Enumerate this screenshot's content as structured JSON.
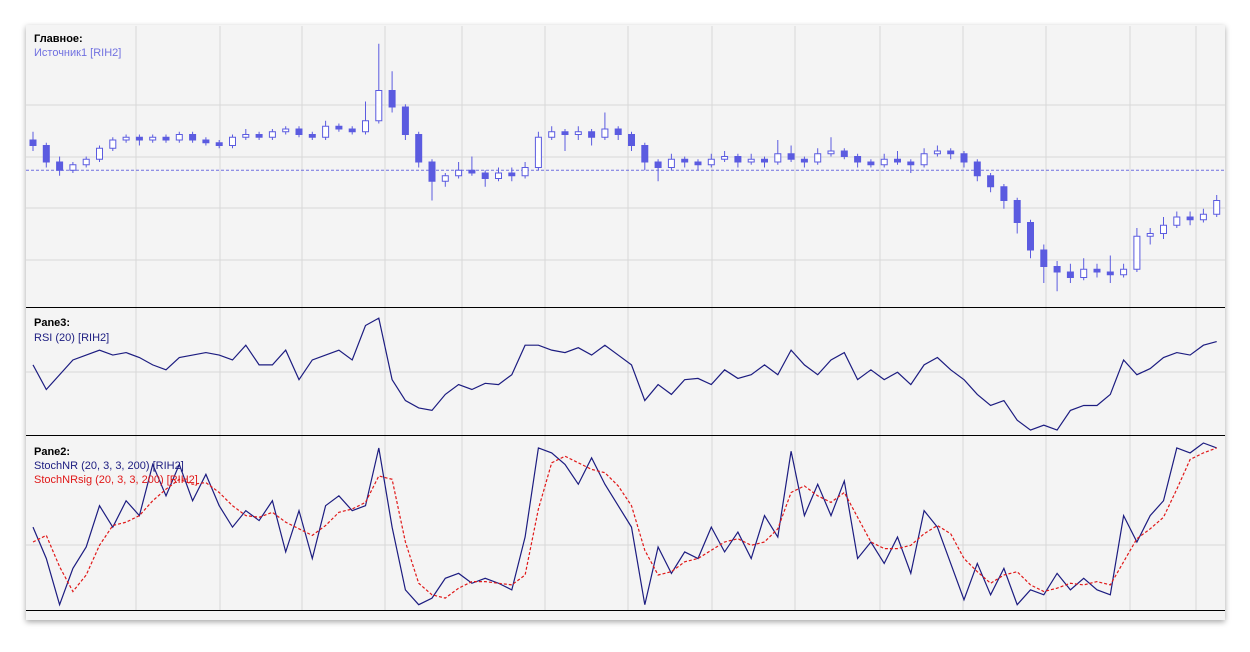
{
  "chart_data": [
    {
      "type": "candlestick",
      "title": "Главное:",
      "subtitle": "Источник1 [RIH2]",
      "color": "#5b5be0",
      "ylim": [
        0,
        100
      ],
      "reference_line": 49,
      "ohlc": [
        [
          60,
          63,
          56,
          58
        ],
        [
          58,
          59,
          50,
          52
        ],
        [
          52,
          54,
          47,
          49
        ],
        [
          49,
          52,
          48,
          51
        ],
        [
          51,
          54,
          50,
          53
        ],
        [
          53,
          58,
          52,
          57
        ],
        [
          57,
          61,
          56,
          60
        ],
        [
          60,
          62,
          59,
          61
        ],
        [
          61,
          62,
          58,
          60
        ],
        [
          60,
          62,
          59,
          61
        ],
        [
          61,
          62,
          59,
          60
        ],
        [
          60,
          63,
          59,
          62
        ],
        [
          62,
          63,
          59,
          60
        ],
        [
          60,
          61,
          58,
          59
        ],
        [
          59,
          60,
          57,
          58
        ],
        [
          58,
          62,
          57,
          61
        ],
        [
          61,
          64,
          60,
          62
        ],
        [
          62,
          63,
          60,
          61
        ],
        [
          61,
          64,
          60,
          63
        ],
        [
          63,
          65,
          62,
          64
        ],
        [
          64,
          65,
          61,
          62
        ],
        [
          62,
          63,
          60,
          61
        ],
        [
          61,
          67,
          60,
          65
        ],
        [
          65,
          66,
          63,
          64
        ],
        [
          64,
          65,
          62,
          63
        ],
        [
          63,
          74,
          62,
          67
        ],
        [
          67,
          95,
          66,
          78
        ],
        [
          78,
          85,
          70,
          72
        ],
        [
          72,
          73,
          60,
          62
        ],
        [
          62,
          63,
          50,
          52
        ],
        [
          52,
          53,
          38,
          45
        ],
        [
          45,
          48,
          43,
          47
        ],
        [
          47,
          52,
          46,
          49
        ],
        [
          49,
          54,
          47,
          48
        ],
        [
          48,
          49,
          43,
          46
        ],
        [
          46,
          50,
          45,
          48
        ],
        [
          48,
          50,
          45,
          47
        ],
        [
          47,
          52,
          46,
          50
        ],
        [
          50,
          63,
          49,
          61
        ],
        [
          61,
          65,
          60,
          63
        ],
        [
          63,
          64,
          56,
          62
        ],
        [
          62,
          65,
          60,
          63
        ],
        [
          63,
          64,
          58,
          61
        ],
        [
          61,
          70,
          60,
          64
        ],
        [
          64,
          65,
          60,
          62
        ],
        [
          62,
          63,
          56,
          58
        ],
        [
          58,
          59,
          49,
          52
        ],
        [
          52,
          53,
          45,
          50
        ],
        [
          50,
          55,
          49,
          53
        ],
        [
          53,
          54,
          50,
          52
        ],
        [
          52,
          53,
          49,
          51
        ],
        [
          51,
          55,
          50,
          53
        ],
        [
          53,
          56,
          52,
          54
        ],
        [
          54,
          55,
          50,
          52
        ],
        [
          52,
          55,
          51,
          53
        ],
        [
          53,
          54,
          50,
          52
        ],
        [
          52,
          60,
          51,
          55
        ],
        [
          55,
          58,
          52,
          53
        ],
        [
          53,
          54,
          50,
          52
        ],
        [
          52,
          57,
          51,
          55
        ],
        [
          55,
          61,
          54,
          56
        ],
        [
          56,
          57,
          53,
          54
        ],
        [
          54,
          55,
          50,
          52
        ],
        [
          52,
          53,
          50,
          51
        ],
        [
          51,
          55,
          50,
          53
        ],
        [
          53,
          56,
          51,
          52
        ],
        [
          52,
          53,
          48,
          51
        ],
        [
          51,
          57,
          50,
          55
        ],
        [
          55,
          58,
          54,
          56
        ],
        [
          56,
          57,
          53,
          55
        ],
        [
          55,
          56,
          50,
          52
        ],
        [
          52,
          53,
          45,
          47
        ],
        [
          47,
          48,
          41,
          43
        ],
        [
          43,
          44,
          35,
          38
        ],
        [
          38,
          39,
          26,
          30
        ],
        [
          30,
          31,
          17,
          20
        ],
        [
          20,
          22,
          8,
          14
        ],
        [
          14,
          16,
          5,
          12
        ],
        [
          12,
          15,
          8,
          10
        ],
        [
          10,
          17,
          9,
          13
        ],
        [
          13,
          15,
          10,
          12
        ],
        [
          12,
          18,
          8,
          11
        ],
        [
          11,
          15,
          10,
          13
        ],
        [
          13,
          28,
          12,
          25
        ],
        [
          25,
          28,
          22,
          26
        ],
        [
          26,
          32,
          24,
          29
        ],
        [
          29,
          34,
          28,
          32
        ],
        [
          32,
          34,
          29,
          31
        ],
        [
          31,
          35,
          30,
          33
        ],
        [
          33,
          40,
          32,
          38
        ]
      ]
    },
    {
      "type": "line",
      "title": "Pane3:",
      "ylim": [
        0,
        100
      ],
      "series": [
        {
          "name": "RSI (20) [RIH2]",
          "color": "#1c1c80",
          "dashed": false,
          "values": [
            57,
            37,
            49,
            61,
            65,
            69,
            65,
            67,
            63,
            57,
            53,
            63,
            65,
            67,
            65,
            61,
            73,
            57,
            57,
            69,
            45,
            61,
            65,
            69,
            61,
            89,
            95,
            45,
            28,
            22,
            20,
            33,
            41,
            37,
            42,
            41,
            49,
            73,
            73,
            69,
            67,
            71,
            65,
            73,
            65,
            57,
            28,
            41,
            33,
            45,
            46,
            41,
            53,
            46,
            49,
            57,
            49,
            69,
            57,
            49,
            61,
            67,
            45,
            53,
            45,
            51,
            41,
            57,
            63,
            53,
            45,
            33,
            24,
            28,
            12,
            4,
            8,
            4,
            20,
            24,
            24,
            33,
            61,
            49,
            54,
            63,
            67,
            65,
            73,
            76
          ]
        }
      ]
    },
    {
      "type": "line",
      "title": "Pane2:",
      "ylim": [
        0,
        100
      ],
      "series": [
        {
          "name": "StochNR (20, 3, 3, 200) [RIH2]",
          "color": "#1c1c80",
          "dashed": false,
          "values": [
            49,
            30,
            2,
            24,
            37,
            62,
            49,
            65,
            56,
            87,
            68,
            87,
            65,
            81,
            62,
            49,
            59,
            53,
            65,
            34,
            59,
            30,
            62,
            68,
            59,
            62,
            97,
            49,
            11,
            2,
            6,
            18,
            21,
            15,
            18,
            15,
            11,
            43,
            97,
            94,
            87,
            75,
            91,
            75,
            62,
            49,
            2,
            37,
            21,
            34,
            30,
            49,
            34,
            46,
            30,
            56,
            43,
            95,
            56,
            75,
            56,
            77,
            30,
            40,
            27,
            43,
            21,
            59,
            49,
            27,
            5,
            27,
            8,
            24,
            2,
            11,
            8,
            21,
            11,
            18,
            11,
            8,
            56,
            40,
            56,
            65,
            97,
            94,
            100,
            97
          ]
        },
        {
          "name": "StochNRsig (20, 3, 3, 200) [RIH2]",
          "color": "#e01818",
          "dashed": true,
          "values": [
            40,
            44,
            25,
            10,
            20,
            38,
            50,
            52,
            56,
            65,
            72,
            78,
            75,
            76,
            70,
            62,
            56,
            55,
            58,
            52,
            48,
            44,
            50,
            58,
            60,
            64,
            80,
            78,
            40,
            15,
            8,
            6,
            12,
            16,
            16,
            15,
            14,
            20,
            60,
            88,
            92,
            88,
            84,
            82,
            74,
            62,
            35,
            20,
            22,
            28,
            30,
            35,
            40,
            42,
            38,
            40,
            48,
            70,
            74,
            68,
            64,
            70,
            55,
            40,
            36,
            36,
            38,
            45,
            50,
            45,
            30,
            22,
            15,
            20,
            22,
            14,
            10,
            12,
            15,
            14,
            16,
            14,
            28,
            42,
            48,
            55,
            72,
            90,
            94,
            97
          ]
        }
      ]
    }
  ]
}
